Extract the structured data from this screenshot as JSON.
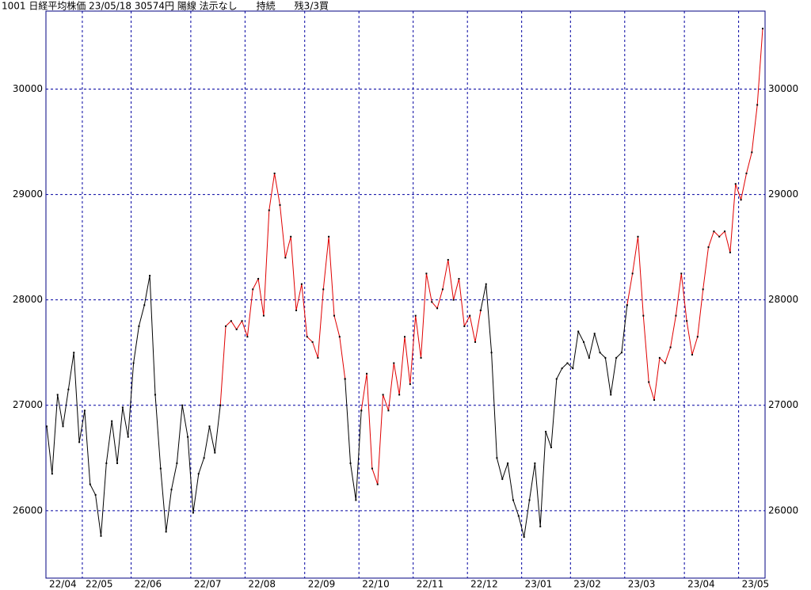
{
  "chart_data": {
    "type": "line",
    "title": "1001 日経平均株価 23/05/18 30574円 陽線 法示なし　　持続　　残3/3買",
    "categories": [
      "22/04",
      null,
      null,
      null,
      null,
      null,
      null,
      "22/05",
      null,
      null,
      null,
      null,
      null,
      null,
      null,
      null,
      "22/06",
      null,
      null,
      null,
      null,
      null,
      null,
      null,
      null,
      null,
      null,
      "22/07",
      null,
      null,
      null,
      null,
      null,
      null,
      null,
      null,
      null,
      "22/08",
      null,
      null,
      null,
      null,
      null,
      null,
      null,
      null,
      null,
      null,
      "22/09",
      null,
      null,
      null,
      null,
      null,
      null,
      null,
      null,
      null,
      "22/10",
      null,
      null,
      null,
      null,
      null,
      null,
      null,
      null,
      null,
      "22/11",
      null,
      null,
      null,
      null,
      null,
      null,
      null,
      null,
      null,
      "22/12",
      null,
      null,
      null,
      null,
      null,
      null,
      null,
      null,
      null,
      "23/01",
      null,
      null,
      null,
      null,
      null,
      null,
      null,
      null,
      "23/02",
      null,
      null,
      null,
      null,
      null,
      null,
      null,
      null,
      null,
      "23/03",
      null,
      null,
      null,
      null,
      null,
      null,
      null,
      null,
      null,
      null,
      "23/04",
      null,
      null,
      null,
      null,
      null,
      null,
      null,
      null,
      null,
      "23/05",
      null,
      null,
      null,
      null
    ],
    "series": [
      {
        "color": "#000000",
        "values": [
          26800,
          26350,
          27100,
          26800,
          27150,
          27500,
          26650,
          26950,
          26250,
          26150,
          25760,
          26450,
          26850,
          26450,
          26980,
          26700,
          27400,
          27750,
          27950,
          28230,
          27100,
          26400,
          25800,
          26200,
          26450,
          27000,
          26700,
          25980,
          26350,
          26500,
          26800,
          26550,
          27000,
          null,
          null,
          null,
          null,
          null,
          null,
          null,
          null,
          null,
          null,
          null,
          null,
          null,
          null,
          null,
          null,
          null,
          null,
          null,
          null,
          null,
          null,
          27250,
          26450,
          26100,
          26950,
          null,
          null,
          null,
          null,
          null,
          null,
          null,
          null,
          null,
          null,
          null,
          null,
          null,
          null,
          null,
          null,
          null,
          null,
          null,
          null,
          null,
          27900,
          28150,
          27500,
          26500,
          26300,
          26450,
          26100,
          25950,
          25750,
          26100,
          26450,
          25850,
          26750,
          26600,
          27250,
          27350,
          27400,
          27350,
          27700,
          27600,
          27450,
          27680,
          27500,
          27450,
          27100,
          27450,
          27500,
          27950,
          null,
          null,
          null,
          null,
          null,
          null,
          null,
          null,
          null,
          null,
          null,
          null,
          null,
          null,
          null,
          null,
          null,
          null,
          null,
          null,
          null,
          null,
          null,
          null,
          null
        ]
      },
      {
        "color": "#e00000",
        "values": [
          null,
          null,
          null,
          null,
          null,
          null,
          null,
          null,
          null,
          null,
          null,
          null,
          null,
          null,
          null,
          null,
          null,
          null,
          null,
          null,
          null,
          null,
          null,
          null,
          null,
          null,
          null,
          null,
          null,
          null,
          null,
          null,
          27000,
          27750,
          27800,
          27720,
          27800,
          27650,
          28100,
          28200,
          27850,
          28850,
          29200,
          28900,
          28400,
          28600,
          27900,
          28150,
          27650,
          27600,
          27450,
          28100,
          28600,
          27850,
          27650,
          27250,
          null,
          null,
          26950,
          27300,
          26400,
          26250,
          27100,
          26950,
          27400,
          27100,
          27650,
          27200,
          27850,
          27450,
          28250,
          27980,
          27920,
          28100,
          28380,
          28000,
          28200,
          27750,
          27850,
          27600,
          27900,
          null,
          null,
          null,
          null,
          null,
          null,
          null,
          null,
          null,
          null,
          null,
          null,
          null,
          null,
          null,
          null,
          null,
          null,
          null,
          null,
          null,
          null,
          null,
          null,
          null,
          null,
          27950,
          28250,
          28600,
          27850,
          27220,
          27050,
          27450,
          27400,
          27550,
          27850,
          28250,
          27800,
          27480,
          27650,
          28100,
          28500,
          28650,
          28600,
          28650,
          28450,
          29100,
          28950,
          29200,
          29400,
          29850,
          30574
        ]
      }
    ],
    "ylim": [
      25360,
      30740
    ],
    "yticks": [
      26000,
      27000,
      28000,
      29000,
      30000
    ],
    "grid": true
  }
}
